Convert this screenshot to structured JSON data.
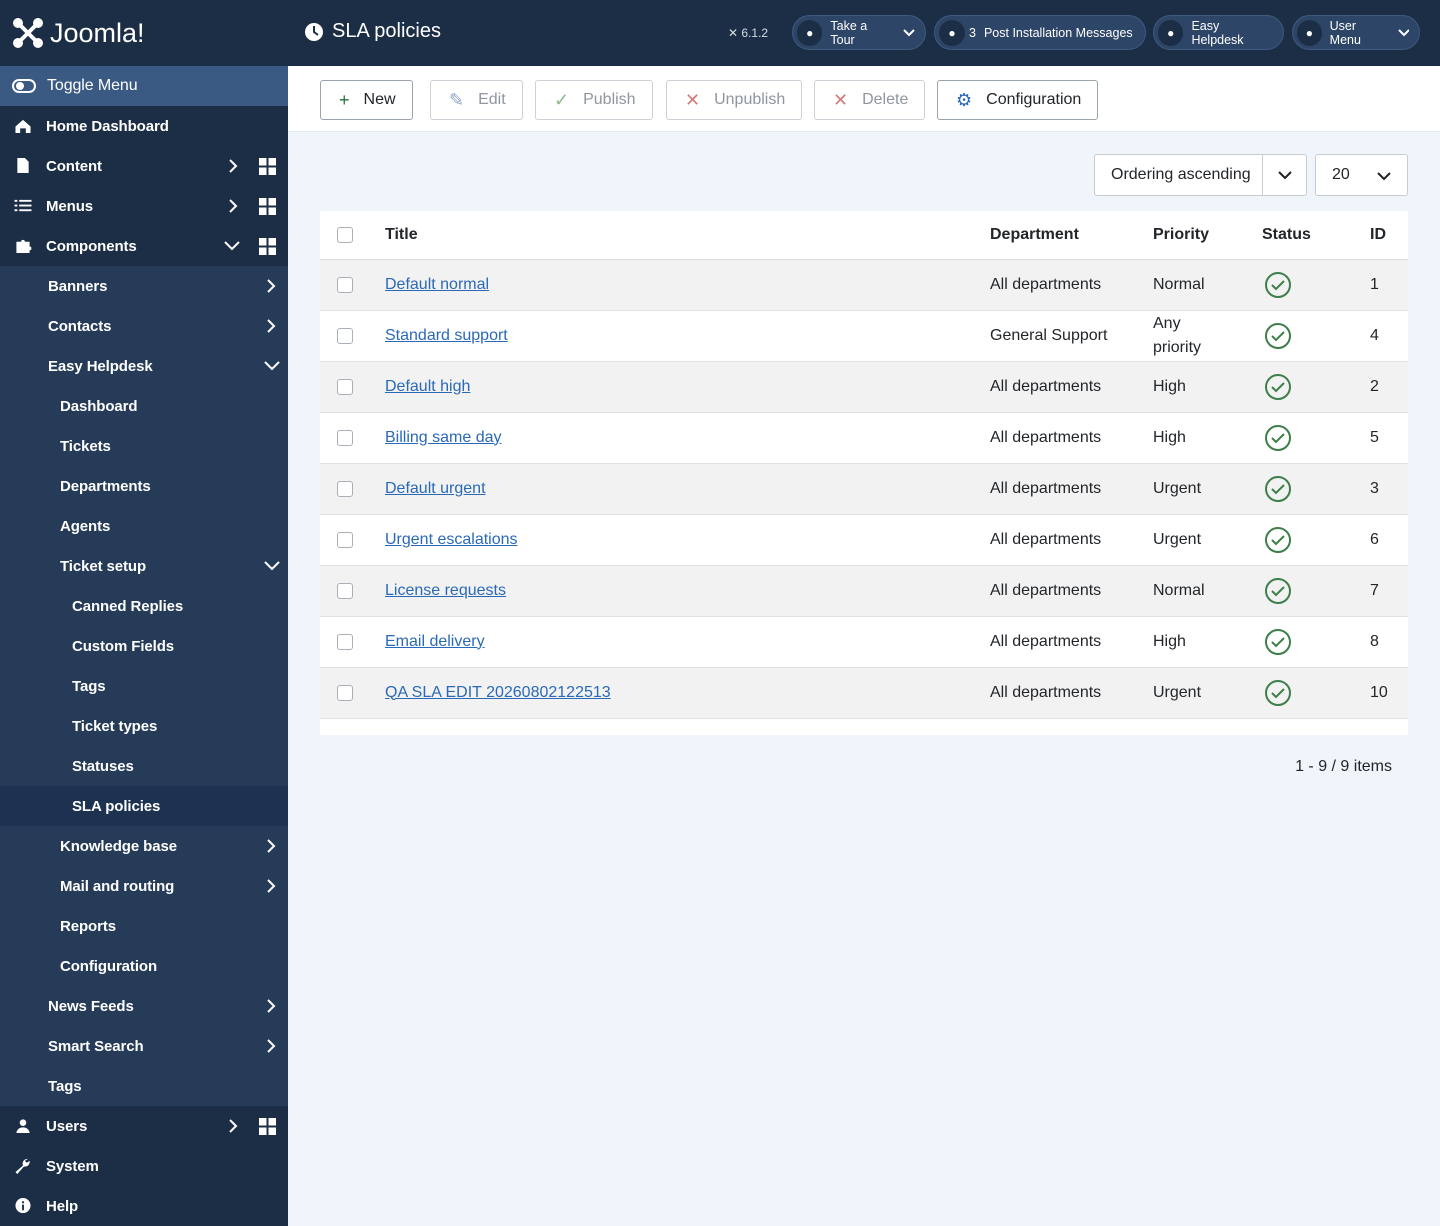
{
  "header": {
    "logo": "Joomla!",
    "title": "SLA policies",
    "version": "6.1.2",
    "buttons": [
      {
        "label": "Take a Tour",
        "dropdown": true
      },
      {
        "count": 3,
        "label": "Post Installation Messages"
      },
      {
        "label": "Easy Helpdesk"
      },
      {
        "label": "User Menu",
        "dropdown": true
      }
    ]
  },
  "sidebar": {
    "toggle": "Toggle Menu",
    "items": [
      {
        "label": "Home Dashboard"
      },
      {
        "label": "Content",
        "submenu": true,
        "dashboard": true
      },
      {
        "label": "Menus",
        "submenu": true,
        "dashboard": true
      },
      {
        "label": "Components",
        "dashboard": true,
        "children": [
          {
            "label": "Banners",
            "submenu": true
          },
          {
            "label": "Contacts",
            "submenu": true
          },
          {
            "label": "Easy Helpdesk",
            "children": [
              {
                "label": "Dashboard"
              },
              {
                "label": "Tickets"
              },
              {
                "label": "Departments"
              },
              {
                "label": "Agents"
              },
              {
                "label": "Ticket setup",
                "children": [
                  {
                    "label": "Canned Replies"
                  },
                  {
                    "label": "Custom Fields"
                  },
                  {
                    "label": "Tags"
                  },
                  {
                    "label": "Ticket types"
                  },
                  {
                    "label": "Statuses"
                  },
                  {
                    "label": "SLA policies",
                    "active": true
                  }
                ]
              },
              {
                "label": "Knowledge base",
                "submenu": true
              },
              {
                "label": "Mail and routing",
                "submenu": true
              },
              {
                "label": "Reports"
              },
              {
                "label": "Configuration"
              }
            ]
          },
          {
            "label": "News Feeds",
            "submenu": true
          },
          {
            "label": "Smart Search",
            "submenu": true
          },
          {
            "label": "Tags"
          }
        ]
      },
      {
        "label": "Users",
        "submenu": true,
        "dashboard": true
      },
      {
        "label": "System"
      },
      {
        "label": "Help"
      }
    ]
  },
  "toolbar": [
    {
      "label": "New",
      "icon": "plus"
    },
    {
      "label": "Edit",
      "icon": "edit",
      "disabled": true
    },
    {
      "label": "Publish",
      "icon": "check",
      "disabled": true
    },
    {
      "label": "Unpublish",
      "icon": "times",
      "disabled": true
    },
    {
      "label": "Delete",
      "icon": "times",
      "disabled": true
    },
    {
      "label": "Configuration",
      "icon": "cog"
    }
  ],
  "filters": {
    "ordering": "Ordering ascending",
    "limit": 20
  },
  "table": {
    "columns": [
      "Title",
      "Department",
      "Priority",
      "Status",
      "ID"
    ],
    "rows": [
      {
        "title": "Default normal",
        "department": "All departments",
        "priority": "Normal",
        "published": true,
        "id": 1
      },
      {
        "title": "Standard support",
        "department": "General Support",
        "priority": "Any priority",
        "published": true,
        "id": 4
      },
      {
        "title": "Default high",
        "department": "All departments",
        "priority": "High",
        "published": true,
        "id": 2
      },
      {
        "title": "Billing same day",
        "department": "All departments",
        "priority": "High",
        "published": true,
        "id": 5
      },
      {
        "title": "Default urgent",
        "department": "All departments",
        "priority": "Urgent",
        "published": true,
        "id": 3
      },
      {
        "title": "Urgent escalations",
        "department": "All departments",
        "priority": "Urgent",
        "published": true,
        "id": 6
      },
      {
        "title": "License requests",
        "department": "All departments",
        "priority": "Normal",
        "published": true,
        "id": 7
      },
      {
        "title": "Email delivery",
        "department": "All departments",
        "priority": "High",
        "published": true,
        "id": 8
      },
      {
        "title": "QA SLA EDIT 20260802122513",
        "department": "All departments",
        "priority": "Urgent",
        "published": true,
        "id": 10
      }
    ],
    "footer": "1 - 9 / 9 items"
  }
}
